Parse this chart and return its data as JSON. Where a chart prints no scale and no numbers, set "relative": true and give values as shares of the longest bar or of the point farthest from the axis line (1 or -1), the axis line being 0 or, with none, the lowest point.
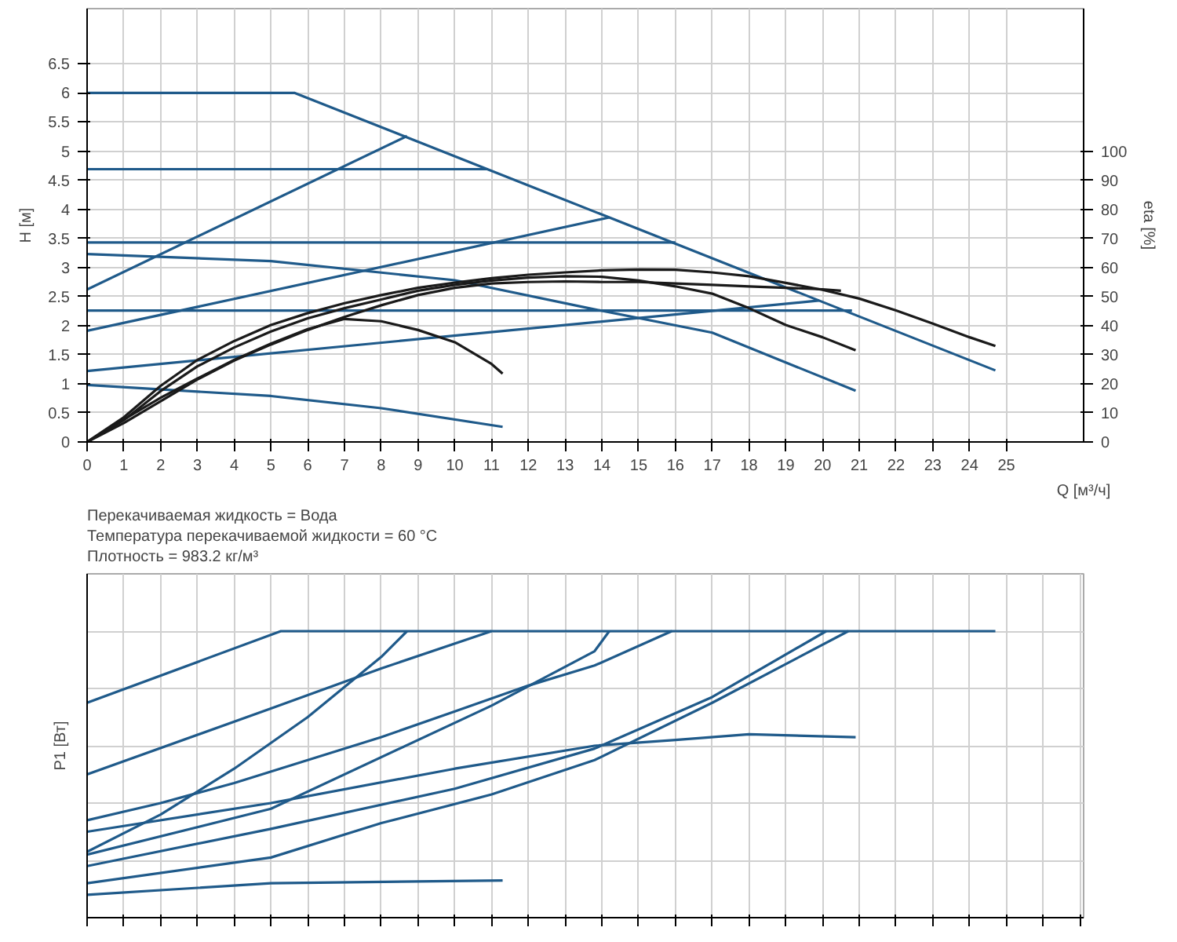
{
  "chart_data": [
    {
      "type": "line",
      "xlabel": "Q [м³/ч]",
      "ylabel": "H [м]",
      "y2label": "eta [%]",
      "xlim": [
        0,
        27.1
      ],
      "xticks": [
        0,
        1,
        2,
        3,
        4,
        5,
        6,
        7,
        8,
        9,
        10,
        11,
        12,
        13,
        14,
        15,
        16,
        17,
        18,
        19,
        20,
        21,
        22,
        23,
        24,
        25
      ],
      "ylim": [
        0,
        7.45
      ],
      "yticks": [
        0,
        0.5,
        1,
        1.5,
        2,
        2.5,
        3,
        3.5,
        4,
        4.5,
        5,
        5.5,
        6,
        6.5
      ],
      "y2lim": [
        0,
        149
      ],
      "y2ticks": [
        0,
        10,
        20,
        30,
        40,
        50,
        60,
        70,
        80,
        90,
        100
      ],
      "grid": true,
      "annotations": [
        "Перекачиваемая жидкость = Вода",
        "Температура перекачиваемой жидкости = 60 °C",
        "Плотность = 983.2 кг/м³"
      ],
      "series": [
        {
          "color": "#1f5a8a",
          "x": [
            0,
            5.65,
            24.7
          ],
          "values": [
            6.0,
            6.0,
            1.23
          ]
        },
        {
          "color": "#1f5a8a",
          "x": [
            0,
            10.9
          ],
          "values": [
            4.69,
            4.69
          ]
        },
        {
          "color": "#1f5a8a",
          "x": [
            0,
            16.0
          ],
          "values": [
            3.43,
            3.43
          ]
        },
        {
          "color": "#1f5a8a",
          "x": [
            0,
            20.8
          ],
          "values": [
            2.26,
            2.26
          ]
        },
        {
          "color": "#1f5a8a",
          "x": [
            0,
            8.7
          ],
          "values": [
            2.62,
            5.26
          ]
        },
        {
          "color": "#1f5a8a",
          "x": [
            0,
            14.2
          ],
          "values": [
            1.91,
            3.86
          ]
        },
        {
          "color": "#1f5a8a",
          "x": [
            0,
            19.9
          ],
          "values": [
            1.22,
            2.43
          ]
        },
        {
          "color": "#1f5a8a",
          "x": [
            0,
            5,
            10,
            13.8,
            17,
            20.9
          ],
          "values": [
            3.23,
            3.11,
            2.78,
            2.28,
            1.88,
            0.88
          ]
        },
        {
          "color": "#1f5a8a",
          "x": [
            0,
            5,
            8,
            11.3
          ],
          "values": [
            0.98,
            0.79,
            0.58,
            0.26
          ]
        },
        {
          "color": "#1a1a1a",
          "axis": "y2",
          "x": [
            0,
            1,
            2,
            3,
            4,
            5,
            6,
            7,
            8,
            9,
            10,
            11,
            12,
            13,
            14,
            15,
            16,
            17,
            18,
            19,
            20,
            21,
            22,
            23,
            24,
            24.7
          ],
          "values": [
            0,
            8.5,
            19.3,
            28.2,
            34.7,
            40.2,
            44.3,
            47.7,
            50.5,
            53,
            54.8,
            56.3,
            57.5,
            58.3,
            59,
            59.3,
            59.2,
            58.3,
            57,
            54.7,
            52.3,
            49.3,
            45.2,
            40.7,
            36,
            33
          ]
        },
        {
          "color": "#1a1a1a",
          "axis": "y2",
          "x": [
            0,
            1,
            2,
            3,
            4,
            5,
            6,
            7,
            8,
            9,
            10,
            11,
            11.3
          ],
          "values": [
            0,
            7.7,
            15.2,
            21.8,
            28.2,
            33.8,
            38.8,
            42.3,
            41.5,
            38.5,
            34.3,
            26.8,
            23.5
          ]
        },
        {
          "color": "#1a1a1a",
          "axis": "y2",
          "x": [
            0,
            1,
            2,
            3,
            4,
            5,
            6,
            7,
            8,
            9,
            10,
            11,
            12,
            13,
            14,
            15,
            16,
            17,
            18,
            19,
            20,
            20.9
          ],
          "values": [
            0,
            7.5,
            17.5,
            26,
            32.5,
            38,
            42.5,
            46,
            49,
            52,
            54,
            55.5,
            56.5,
            57,
            56.8,
            55.5,
            53.5,
            51,
            46,
            40.2,
            36,
            31.5
          ]
        },
        {
          "color": "#1a1a1a",
          "axis": "y2",
          "x": [
            0,
            1,
            2,
            3,
            4,
            5,
            6,
            7,
            8,
            9,
            10,
            11,
            12,
            13,
            14,
            15,
            16,
            17,
            18,
            19,
            20,
            20.5
          ],
          "values": [
            0,
            6.5,
            14,
            21.5,
            28,
            33.5,
            38.5,
            43,
            47,
            50.5,
            53,
            54.5,
            55,
            55.2,
            55,
            55,
            54.5,
            54,
            53.5,
            53,
            52.5,
            52
          ]
        }
      ]
    },
    {
      "type": "line",
      "ylabel": "P1 [Вт]",
      "relative": true,
      "xlim": [
        0,
        27.1
      ],
      "xticks": [
        0,
        1,
        2,
        3,
        4,
        5,
        6,
        7,
        8,
        9,
        10,
        11,
        12,
        13,
        14,
        15,
        16,
        17,
        18,
        19,
        20,
        21,
        22,
        23,
        24,
        25,
        26,
        27
      ],
      "grid": true,
      "tick_labels": false,
      "series": [
        {
          "color": "#1f5a8a",
          "x": [
            0,
            5.27,
            24.7
          ],
          "values": [
            0.75,
            1,
            1
          ]
        },
        {
          "color": "#1f5a8a",
          "x": [
            0,
            5,
            8,
            11
          ],
          "values": [
            0.5,
            0.73,
            0.87,
            1
          ]
        },
        {
          "color": "#1f5a8a",
          "x": [
            0,
            2,
            4,
            6,
            8,
            8.7
          ],
          "values": [
            0.23,
            0.36,
            0.52,
            0.7,
            0.91,
            1
          ]
        },
        {
          "color": "#1f5a8a",
          "x": [
            0,
            5,
            11,
            13.8,
            14.2
          ],
          "values": [
            0.22,
            0.38,
            0.74,
            0.93,
            1
          ]
        },
        {
          "color": "#1f5a8a",
          "x": [
            0,
            2,
            4,
            6,
            8,
            10,
            12,
            13.8,
            15.9
          ],
          "values": [
            0.34,
            0.4,
            0.47,
            0.55,
            0.63,
            0.72,
            0.81,
            0.88,
            1
          ]
        },
        {
          "color": "#1f5a8a",
          "x": [
            0,
            5,
            10,
            13.8,
            16,
            18,
            20.9
          ],
          "values": [
            0.3,
            0.4,
            0.52,
            0.6,
            0.62,
            0.64,
            0.63
          ]
        },
        {
          "color": "#1f5a8a",
          "x": [
            0,
            5,
            10,
            13.8,
            17,
            20.1
          ],
          "values": [
            0.18,
            0.31,
            0.45,
            0.59,
            0.77,
            1
          ]
        },
        {
          "color": "#1f5a8a",
          "x": [
            0,
            5,
            8,
            11,
            13.8,
            17,
            20.7
          ],
          "values": [
            0.12,
            0.21,
            0.33,
            0.43,
            0.55,
            0.75,
            1
          ]
        },
        {
          "color": "#1f5a8a",
          "x": [
            0,
            5,
            11.3
          ],
          "values": [
            0.08,
            0.12,
            0.13
          ]
        }
      ]
    }
  ]
}
